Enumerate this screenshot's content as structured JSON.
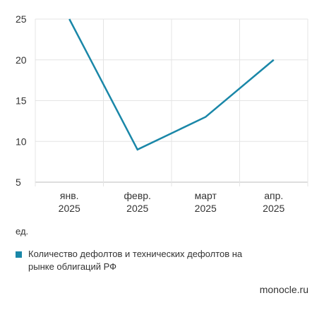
{
  "chart_data": {
    "type": "line",
    "categories": [
      [
        "янв.",
        "2025"
      ],
      [
        "февр.",
        "2025"
      ],
      [
        "март",
        "2025"
      ],
      [
        "апр.",
        "2025"
      ]
    ],
    "series": [
      {
        "name": "Количество дефолтов и технических дефолтов на рынке облигаций РФ",
        "values": [
          25,
          9,
          13,
          20
        ],
        "color": "#1a87a8"
      }
    ],
    "ylim": [
      5,
      25
    ],
    "yticks": [
      5,
      10,
      15,
      20,
      25
    ],
    "ylabel": "ед.",
    "grid": true,
    "legend": "bottom-left"
  },
  "source": "monocle.ru"
}
